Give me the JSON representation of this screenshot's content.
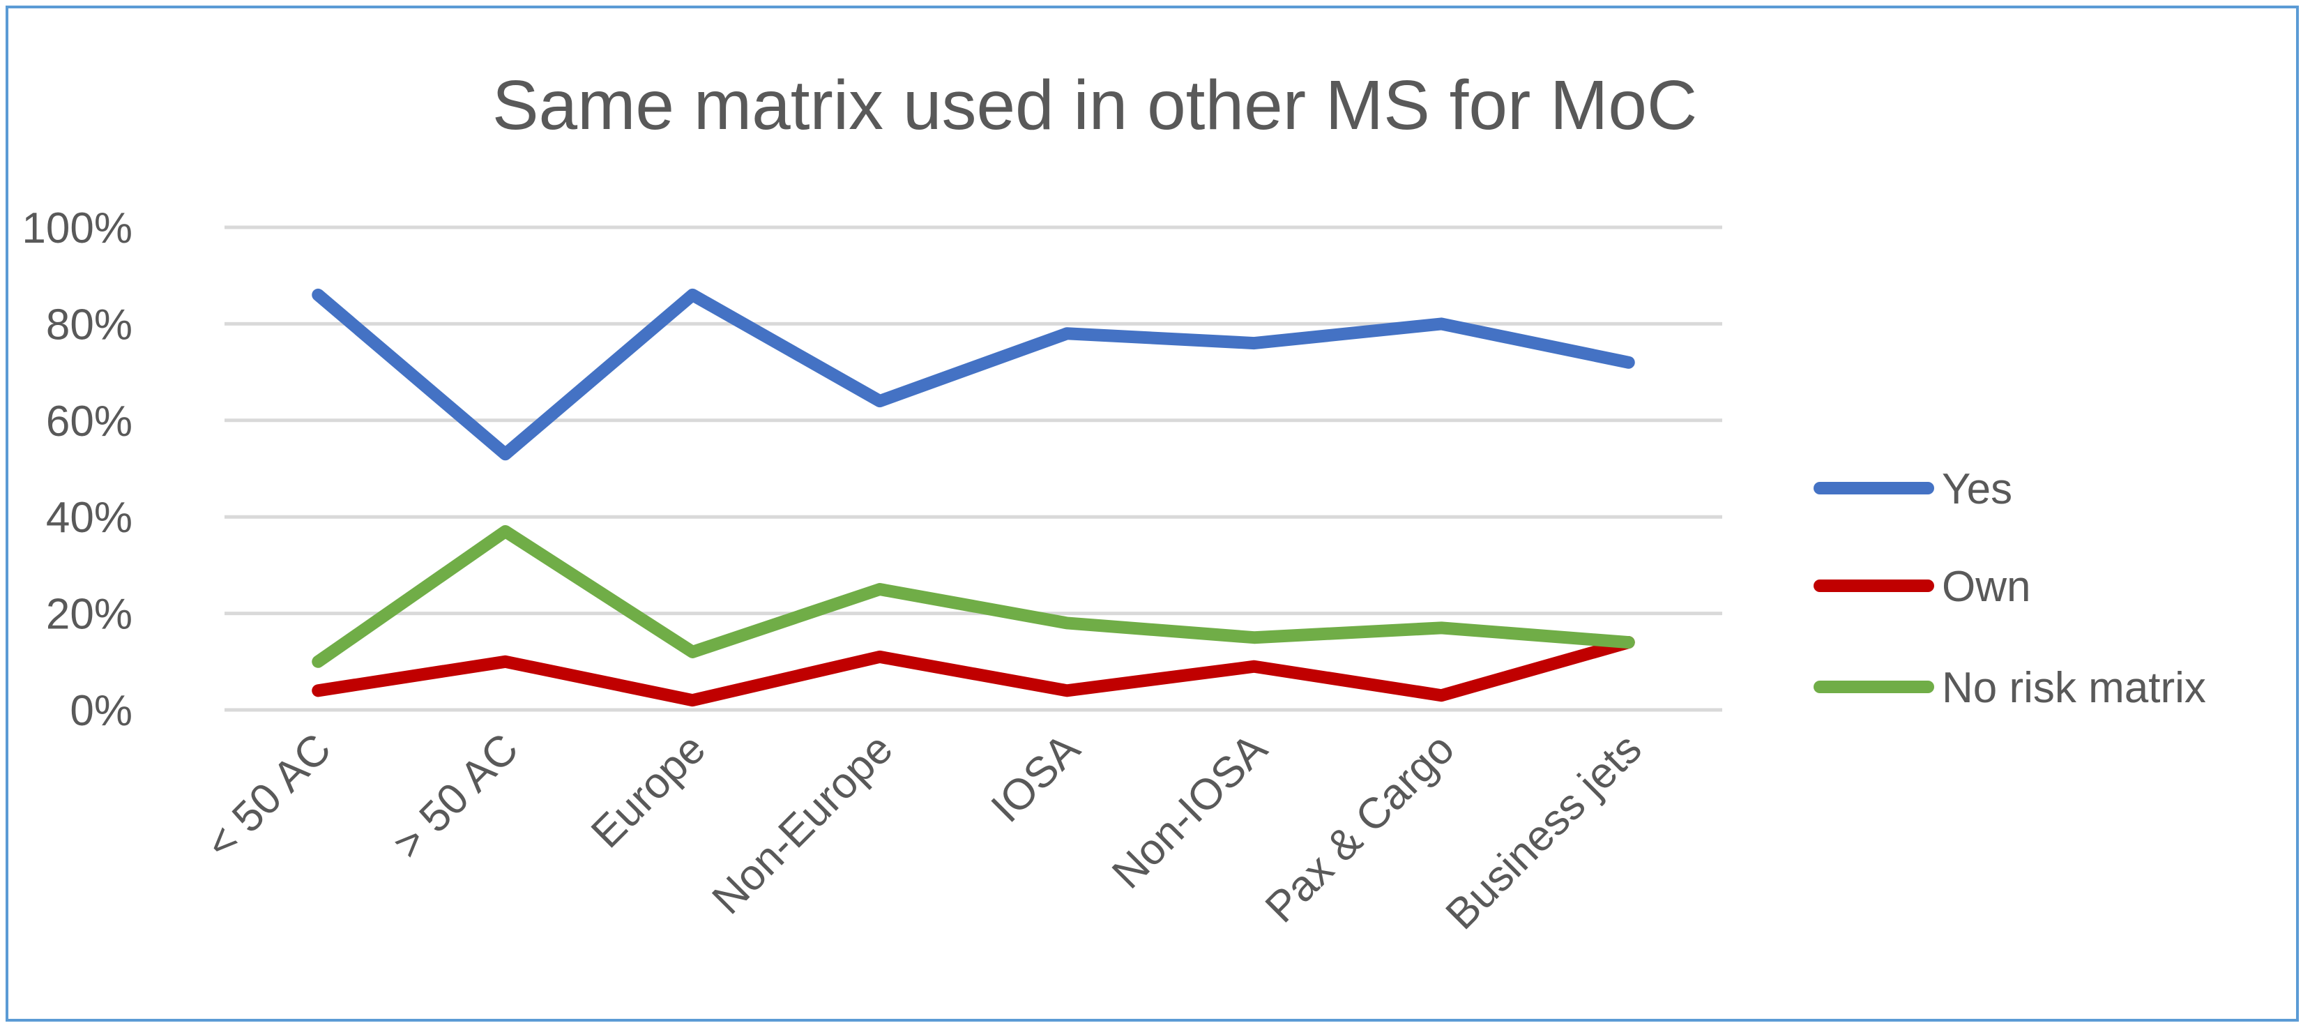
{
  "chart_data": {
    "type": "line",
    "title": "Same matrix used in other MS for MoC",
    "xlabel": "",
    "ylabel": "",
    "categories": [
      "< 50 AC",
      "> 50 AC",
      "Europe",
      "Non-Europe",
      "IOSA",
      "Non-IOSA",
      "Pax & Cargo",
      "Business jets"
    ],
    "ylim": [
      0,
      100
    ],
    "yticks": [
      "0%",
      "20%",
      "40%",
      "60%",
      "80%",
      "100%"
    ],
    "ytick_values": [
      0,
      20,
      40,
      60,
      80,
      100
    ],
    "grid": true,
    "legend_position": "right",
    "series": [
      {
        "name": "Yes",
        "color": "#4472c4",
        "values": [
          86,
          53,
          86,
          64,
          78,
          76,
          80,
          72
        ]
      },
      {
        "name": "Own",
        "color": "#c00000",
        "values": [
          4,
          10,
          2,
          11,
          4,
          9,
          3,
          14
        ]
      },
      {
        "name": "No risk matrix",
        "color": "#70ad47",
        "values": [
          10,
          37,
          12,
          25,
          18,
          15,
          17,
          14
        ]
      }
    ]
  }
}
